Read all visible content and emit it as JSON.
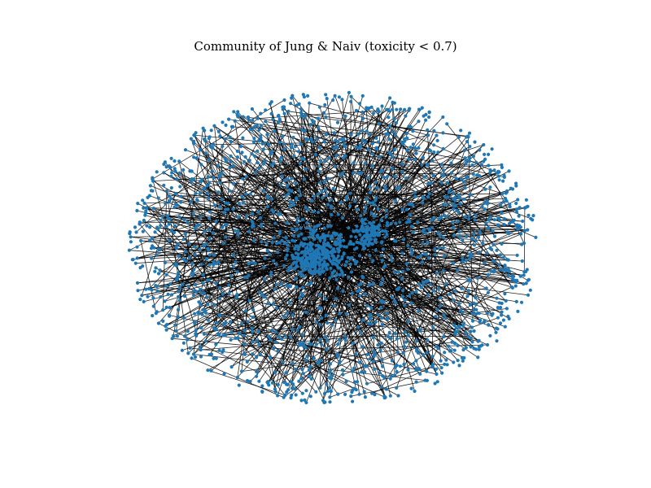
{
  "figure": {
    "title": "Community of Jung & Naiv (toxicity < 0.7)",
    "node_color": "#1f77b4",
    "edge_color": "#000000"
  },
  "chart_data": {
    "type": "network",
    "title": "Community of Jung & Naiv (toxicity < 0.7)",
    "layout": "spring",
    "directed": true,
    "structure": "dense elliptical ring of peripheral nodes with two central hub clusters",
    "node_color": "#1f77b4",
    "edge_color": "#000000"
  }
}
